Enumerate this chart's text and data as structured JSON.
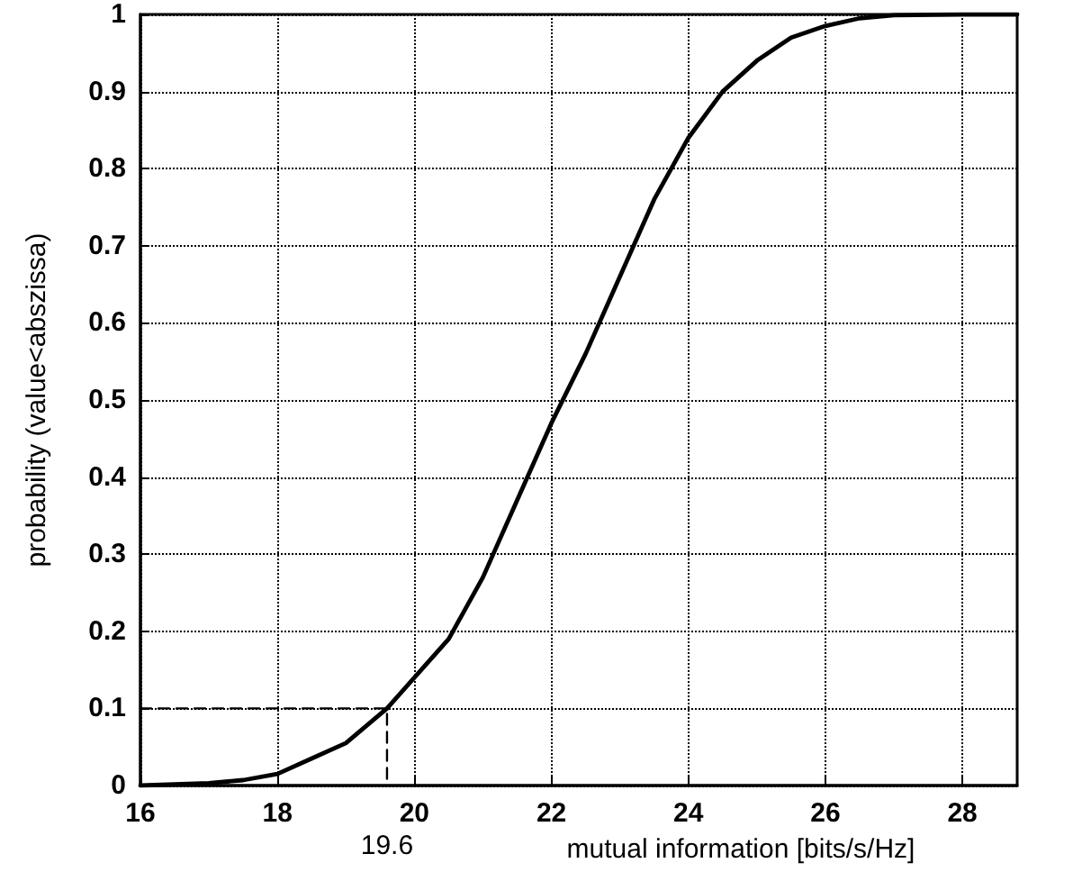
{
  "chart_data": {
    "type": "line",
    "xlabel": "mutual information [bits/s/Hz]",
    "ylabel": "probability (value<abszissa)",
    "xlim": [
      16,
      28.8
    ],
    "xticks": [
      16,
      18,
      20,
      22,
      24,
      26,
      28
    ],
    "ylim": [
      0,
      1
    ],
    "yticks": [
      0,
      0.1,
      0.2,
      0.3,
      0.4,
      0.5,
      0.6,
      0.7,
      0.8,
      0.9,
      1
    ],
    "grid": true,
    "marker": "none",
    "series": [
      {
        "color": "#000000",
        "x": [
          16,
          17,
          17.5,
          18,
          18.5,
          19,
          19.6,
          20,
          20.5,
          21,
          21.5,
          22,
          22.5,
          23,
          23.5,
          24,
          24.5,
          25,
          25.5,
          26,
          26.5,
          27,
          28,
          28.8
        ],
        "values": [
          0,
          0.003,
          0.007,
          0.015,
          0.035,
          0.055,
          0.1,
          0.14,
          0.19,
          0.27,
          0.37,
          0.47,
          0.56,
          0.66,
          0.76,
          0.84,
          0.9,
          0.94,
          0.97,
          0.985,
          0.995,
          0.999,
          1,
          1
        ]
      },
      {
        "color": "#000000",
        "line_style": "dashed",
        "x": [
          16,
          19.6,
          19.6
        ],
        "values": [
          0.1,
          0.1,
          0
        ]
      }
    ],
    "annotations": [
      {
        "text": "19.6",
        "x": 19.6,
        "y": 0
      }
    ]
  }
}
